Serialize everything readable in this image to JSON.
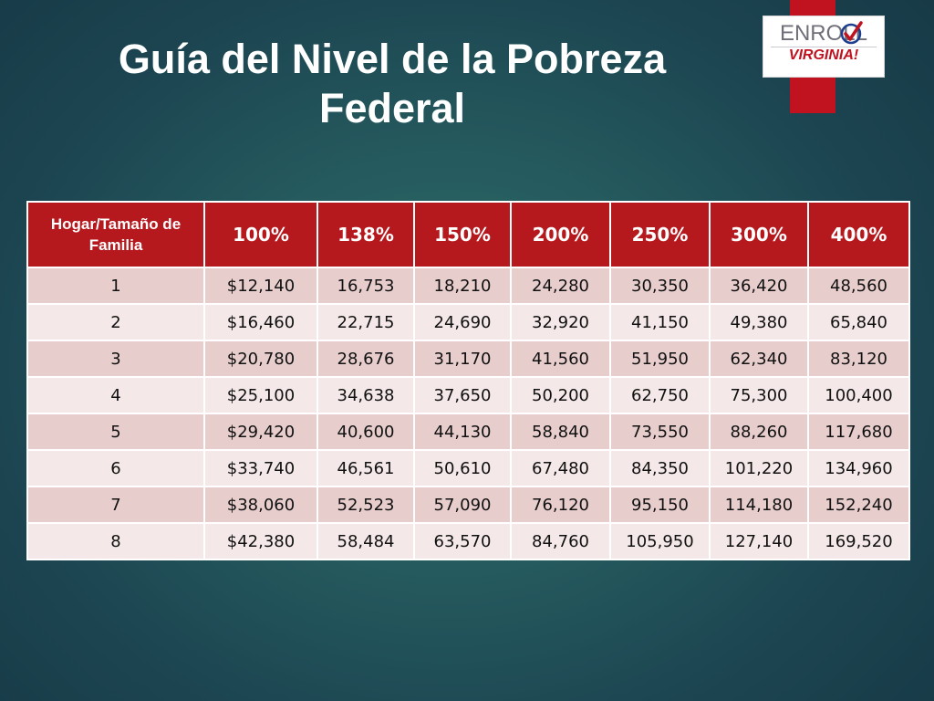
{
  "title": {
    "line1": "Guía del Nivel de la Pobreza",
    "line2": "Federal"
  },
  "logo": {
    "top": "ENROLL",
    "bottom": "VIRGINIA!",
    "brand_red": "#c0121f"
  },
  "table": {
    "headers": [
      "Hogar/Tamaño de Familia",
      "100%",
      "138%",
      "150%",
      "200%",
      "250%",
      "300%",
      "400%"
    ],
    "rows": [
      [
        "1",
        "$12,140",
        "16,753",
        "18,210",
        "24,280",
        "30,350",
        "36,420",
        "48,560"
      ],
      [
        "2",
        "$16,460",
        "22,715",
        "24,690",
        "32,920",
        "41,150",
        "49,380",
        "65,840"
      ],
      [
        "3",
        "$20,780",
        "28,676",
        "31,170",
        "41,560",
        "51,950",
        "62,340",
        "83,120"
      ],
      [
        "4",
        "$25,100",
        "34,638",
        "37,650",
        "50,200",
        "62,750",
        "75,300",
        "100,400"
      ],
      [
        "5",
        "$29,420",
        "40,600",
        "44,130",
        "58,840",
        "73,550",
        "88,260",
        "117,680"
      ],
      [
        "6",
        "$33,740",
        "46,561",
        "50,610",
        "67,480",
        "84,350",
        "101,220",
        "134,960"
      ],
      [
        "7",
        "$38,060",
        "52,523",
        "57,090",
        "76,120",
        "95,150",
        "114,180",
        "152,240"
      ],
      [
        "8",
        "$42,380",
        "58,484",
        "63,570",
        "84,760",
        "105,950",
        "127,140",
        "169,520"
      ]
    ],
    "header_color": "#b5191e",
    "row_color_odd": "#e8cdcd",
    "row_color_even": "#f4e8e8"
  }
}
